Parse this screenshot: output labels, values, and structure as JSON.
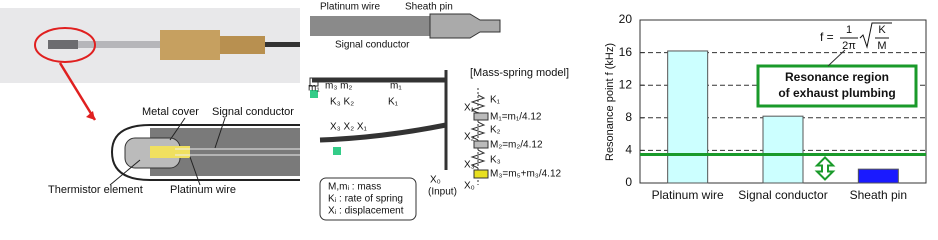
{
  "chart_data": {
    "type": "bar",
    "ylabel": "Resonance point  f (kHz)",
    "categories": [
      "Platinum wire",
      "Signal conductor",
      "Sheath pin"
    ],
    "values": [
      16.2,
      8.2,
      1.7
    ],
    "colors": [
      "#ccffff",
      "#ccffff",
      "#1a1aff"
    ],
    "ylim": [
      0,
      20
    ],
    "yticks": [
      0,
      4,
      8,
      12,
      16,
      20
    ],
    "grid": true,
    "threshold": 3.5,
    "threshold_color": "#1a9a2a",
    "annotation": [
      "Resonance region",
      "of exhaust plumbing"
    ],
    "formula": {
      "lhs": "f =",
      "num": "1",
      "den": "2π",
      "k": "K",
      "m": "M"
    }
  },
  "photo_labels": {
    "metal_cover": "Metal cover",
    "signal_conductor": "Signal conductor",
    "thermistor": "Thermistor element",
    "platinum_wire": "Platinum wire"
  },
  "model": {
    "platinum_wire": "Platinum wire",
    "sheath_pin": "Sheath pin",
    "signal_conductor": "Signal conductor",
    "title": "[Mass-spring model]",
    "beam_labels": [
      "m₁",
      "m₃ m₂",
      "m₁",
      "K₃ K₂",
      "K₁",
      "X₃ X₂ X₁",
      "X₀",
      "(Input)"
    ],
    "spring_labels": [
      "K₁",
      "X₁",
      "M₁=m₁/4.12",
      "K₂",
      "X₂",
      "M₂=m₂/4.12",
      "K₃",
      "X₃",
      "M₃=m₅+m₃/4.12",
      "X₀"
    ],
    "legend": [
      "M,mᵢ : mass",
      "Kᵢ   : rate of spring",
      "Xᵢ   : displacement"
    ]
  }
}
